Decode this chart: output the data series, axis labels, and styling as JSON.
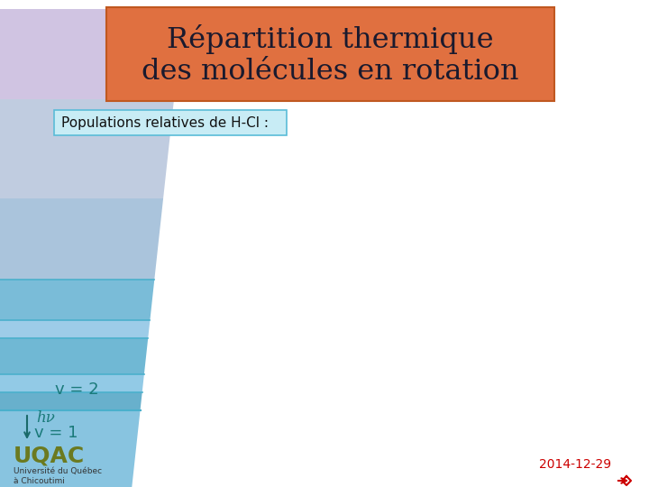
{
  "title_line1": "Répartition thermique",
  "title_line2": "des molécules en rotation",
  "title_bg_color": "#E07040",
  "title_border_color": "#c05820",
  "title_text_color": "#1a1a2e",
  "subtitle": "Populations relatives de H-Cl :",
  "subtitle_bg_color": "#c8ecf5",
  "subtitle_border_color": "#5abcd8",
  "bg_color": "#ffffff",
  "v2_label": "v = 2",
  "hv_label": "hν",
  "v1_label": "v = 1",
  "label_color": "#1a7a7a",
  "date_text": "2014-12-29",
  "date_color": "#cc0000",
  "uqac_color": "#6b7a20",
  "uqac_text": "UQAC",
  "univ_line1": "Université du Québec",
  "univ_line2": "à Chicoutimi",
  "arrow_color": "#1a6a6a",
  "panel_colors": [
    "#d4c8e4",
    "#c0cce0",
    "#aac4dc",
    "#96bcd8",
    "#82b4d4",
    "#6eacd0",
    "#5aa4cc",
    "#469cc8",
    "#7bbee0",
    "#90caec"
  ],
  "stripe_line_color": "#4ab0cc"
}
